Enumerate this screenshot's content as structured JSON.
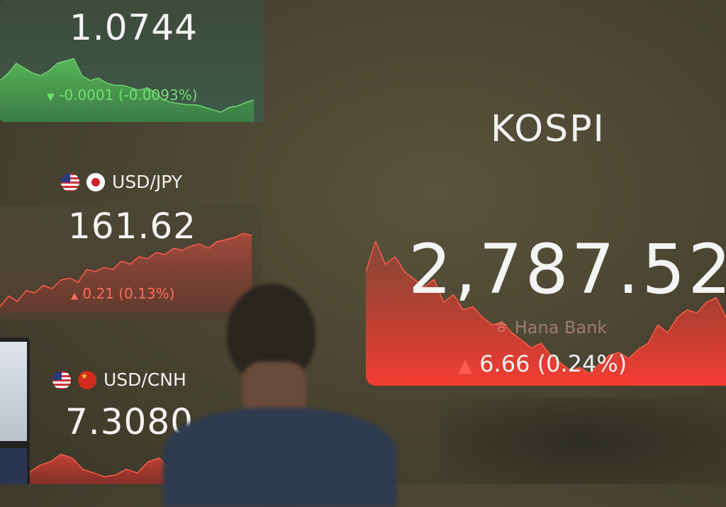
{
  "board": {
    "eur_usd": {
      "price": "1.0744",
      "change": "-0.0001 (-0.0093%)",
      "direction": "down",
      "arrow": "▼",
      "color": "#5fd35f"
    },
    "usd_jpy": {
      "pair": "USD/JPY",
      "price": "161.62",
      "change": "0.21 (0.13%)",
      "direction": "up",
      "arrow": "▲",
      "color": "#ff5a50",
      "flags": [
        "us-flag-icon",
        "jp-flag-icon"
      ]
    },
    "usd_cnh": {
      "pair": "USD/CNH",
      "price": "7.3080",
      "color": "#ff5a50",
      "flags": [
        "us-flag-icon",
        "cn-flag-icon"
      ]
    },
    "kospi": {
      "name": "KOSPI",
      "price": "2,787.52",
      "change": "6.66 (0.24%)",
      "direction": "up",
      "arrow": "▲",
      "color": "#ff4a40"
    },
    "watermark": "Hana Bank"
  }
}
